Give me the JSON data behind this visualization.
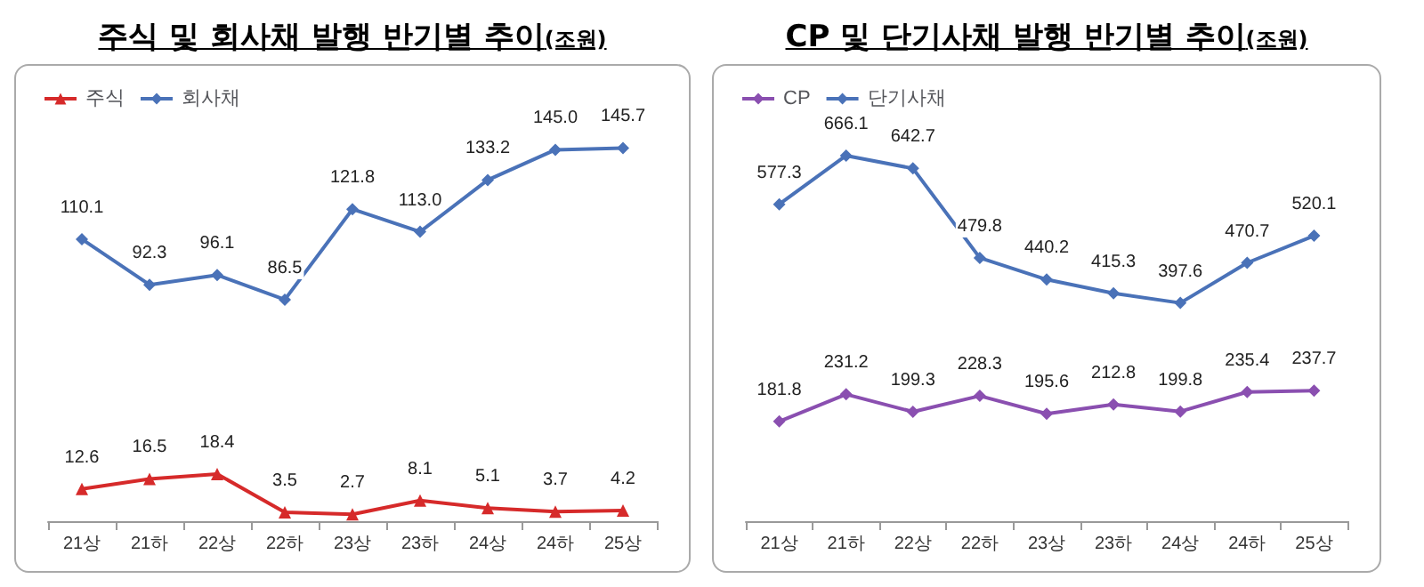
{
  "chart_data": [
    {
      "type": "line",
      "title": "주식 및 회사채 발행 반기별 추이",
      "subtitle": "(조원)",
      "categories": [
        "21상",
        "21하",
        "22상",
        "22하",
        "23상",
        "23하",
        "24상",
        "24하",
        "25상"
      ],
      "legend": "top left",
      "series": [
        {
          "name": "주식",
          "color": "#d62a2a",
          "marker": "triangle",
          "values": [
            12.6,
            16.5,
            18.4,
            3.5,
            2.7,
            8.1,
            5.1,
            3.7,
            4.2
          ],
          "value_labels": [
            "12.6",
            "16.5",
            "18.4",
            "3.5",
            "2.7",
            "8.1",
            "5.1",
            "3.7",
            "4.2"
          ]
        },
        {
          "name": "회사채",
          "color": "#4a72b8",
          "marker": "diamond",
          "values": [
            110.1,
            92.3,
            96.1,
            86.5,
            121.8,
            113.0,
            133.2,
            145.0,
            145.7
          ],
          "value_labels": [
            "110.1",
            "92.3",
            "96.1",
            "86.5",
            "121.8",
            "113.0",
            "133.2",
            "145.0",
            "145.7"
          ]
        }
      ]
    },
    {
      "type": "line",
      "title": "CP 및 단기사채 발행 반기별 추이",
      "subtitle": "(조원)",
      "categories": [
        "21상",
        "21하",
        "22상",
        "22하",
        "23상",
        "23하",
        "24상",
        "24하",
        "25상"
      ],
      "legend": "top left",
      "series": [
        {
          "name": "CP",
          "color": "#8a4fb0",
          "marker": "diamond",
          "values": [
            181.8,
            231.2,
            199.3,
            228.3,
            195.6,
            212.8,
            199.8,
            235.4,
            237.7
          ],
          "value_labels": [
            "181.8",
            "231.2",
            "199.3",
            "228.3",
            "195.6",
            "212.8",
            "199.8",
            "235.4",
            "237.7"
          ]
        },
        {
          "name": "단기사채",
          "color": "#4a72b8",
          "marker": "diamond",
          "values": [
            577.3,
            666.1,
            642.7,
            479.8,
            440.2,
            415.3,
            397.6,
            470.7,
            520.1
          ],
          "value_labels": [
            "577.3",
            "666.1",
            "642.7",
            "479.8",
            "440.2",
            "415.3",
            "397.6",
            "470.7",
            "520.1"
          ]
        }
      ]
    }
  ]
}
